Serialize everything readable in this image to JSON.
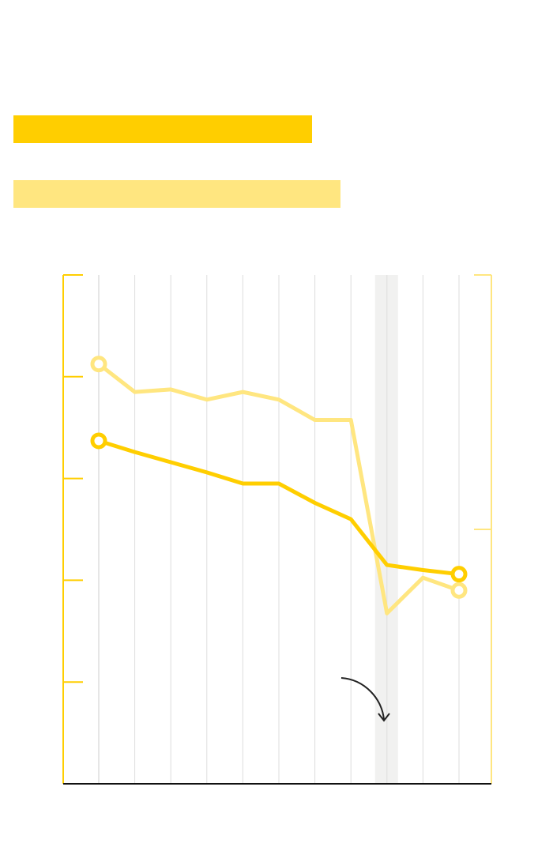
{
  "colors": {
    "series_dark": "#FFCE00",
    "series_light": "#FFE680",
    "axis": "#111111",
    "grid": "#dddddd",
    "highlight_band": "#f1f1f0",
    "annotation_arrow": "#222222"
  },
  "legend": {
    "entries": [
      {
        "color": "#FFCE00"
      },
      {
        "color": "#FFE680"
      }
    ]
  },
  "chart_data": {
    "type": "line",
    "title": "",
    "xlabel": "",
    "ylabel": "",
    "x": [
      0,
      1,
      2,
      3,
      4,
      5,
      6,
      7,
      8,
      9,
      10
    ],
    "left_axis": {
      "ylim": [
        0,
        5
      ],
      "ticks": [
        0,
        1,
        2,
        3,
        4,
        5
      ],
      "tick_labels_shown": false,
      "color": "#FFCE00"
    },
    "right_axis": {
      "ylim": [
        0,
        2
      ],
      "ticks": [
        0,
        1,
        2
      ],
      "tick_labels_shown": false,
      "color": "#FFE680"
    },
    "grid": "vertical",
    "series": [
      {
        "axis": "left",
        "color": "#FFCE00",
        "values": [
          3.37,
          3.26,
          3.16,
          3.06,
          2.95,
          2.95,
          2.76,
          2.6,
          2.15,
          2.1,
          2.06
        ],
        "end_markers": true
      },
      {
        "axis": "right",
        "color": "#FFE680",
        "values": [
          1.65,
          1.54,
          1.55,
          1.51,
          1.54,
          1.51,
          1.43,
          1.43,
          0.67,
          0.81,
          0.76
        ],
        "end_markers": true
      }
    ],
    "highlight_band": {
      "x": 8
    },
    "annotation": {
      "type": "arrow",
      "points_to_x": 8
    }
  }
}
